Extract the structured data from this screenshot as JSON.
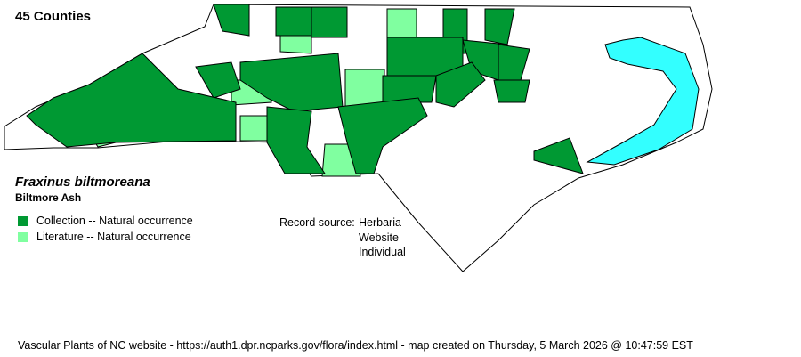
{
  "county_count": "45 Counties",
  "species": {
    "scientific_name": "Fraxinus biltmoreana",
    "common_name": "Biltmore Ash"
  },
  "legend": [
    {
      "label": "Collection -- Natural occurrence",
      "color": "#009933"
    },
    {
      "label": "Literature -- Natural occurrence",
      "color": "#80ffa0"
    }
  ],
  "record_source": {
    "label": "Record source:",
    "values": [
      "Herbaria",
      "Website",
      "Individual"
    ]
  },
  "footer": "Vascular Plants of NC website - https://auth1.dpr.ncparks.gov/flora/index.html - map created on Thursday, 5 March 2026 @ 10:47:59 EST",
  "colors": {
    "water": "#33ffff",
    "no_record": "#ffffff",
    "border": "#000000"
  }
}
